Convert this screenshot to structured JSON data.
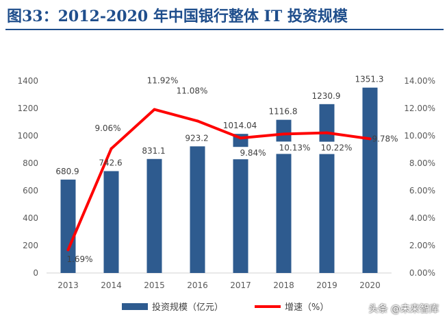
{
  "figure": {
    "title": "图33：2012-2020 年中国银行整体 IT 投资规模",
    "watermark": "头条 @未来智库"
  },
  "chart_data": {
    "type": "bar",
    "categories": [
      "2013",
      "2014",
      "2015",
      "2016",
      "2017",
      "2018",
      "2019",
      "2020"
    ],
    "series": [
      {
        "name": "投资规模（亿元）",
        "type": "bar",
        "axis": "left",
        "color": "#2e5b8f",
        "values": [
          680.9,
          742.6,
          831.1,
          923.2,
          1014.04,
          1116.8,
          1230.9,
          1351.3
        ],
        "labels": [
          "680.9",
          "742.6",
          "831.1",
          "923.2",
          "1014.04",
          "1116.8",
          "1230.9",
          "1351.3"
        ]
      },
      {
        "name": "增速（%）",
        "type": "line",
        "axis": "right",
        "color": "#ff0000",
        "values": [
          1.69,
          9.06,
          11.92,
          11.08,
          9.84,
          10.13,
          10.22,
          9.78
        ],
        "labels": [
          "1.69%",
          "9.06%",
          "11.92%",
          "11.08%",
          "9.84%",
          "10.13%",
          "10.22%",
          "9.78%"
        ]
      }
    ],
    "y_left": {
      "lim": [
        0,
        1400
      ],
      "ticks": [
        "0",
        "200",
        "400",
        "600",
        "800",
        "1000",
        "1200",
        "1400"
      ]
    },
    "y_right": {
      "lim": [
        0,
        14
      ],
      "ticks": [
        "0.00%",
        "2.00%",
        "4.00%",
        "6.00%",
        "8.00%",
        "10.00%",
        "12.00%",
        "14.00%"
      ]
    },
    "grid": false,
    "legend": "bottom"
  }
}
